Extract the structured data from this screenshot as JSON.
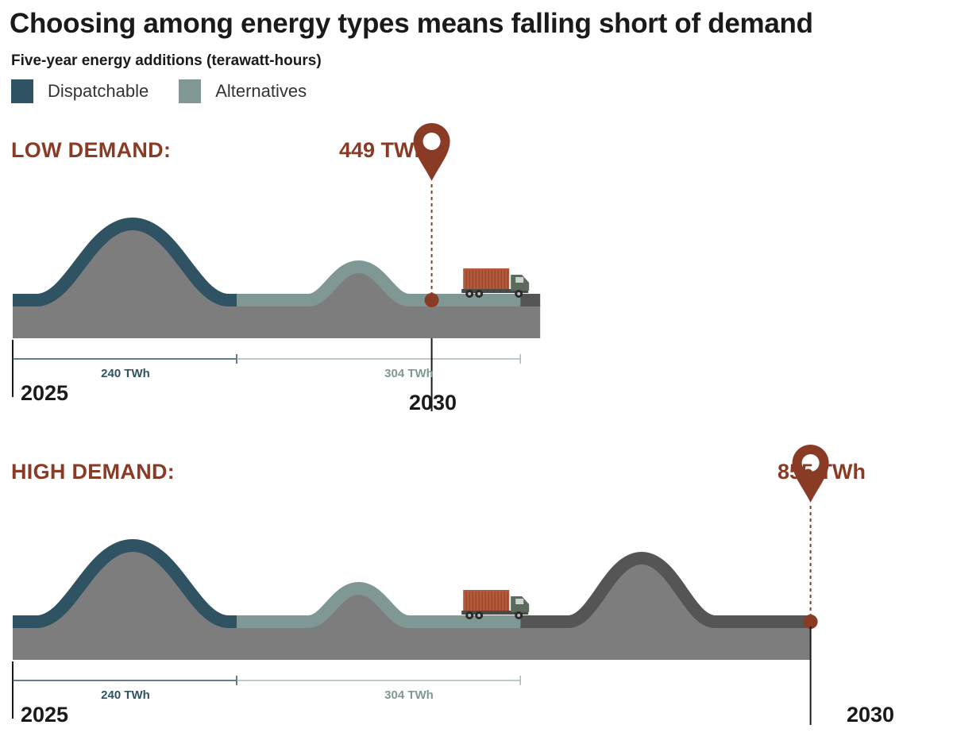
{
  "title": "Choosing among energy types means falling short of demand",
  "subtitle": "Five-year energy additions (terawatt-hours)",
  "legend": [
    {
      "label": "Dispatchable",
      "color": "#2f5362"
    },
    {
      "label": "Alternatives",
      "color": "#7f9894"
    }
  ],
  "colors": {
    "dispatchable": "#2f5362",
    "alternatives": "#7f9894",
    "shortfall": "#555555",
    "road": "#7d7d7d",
    "accent": "#8a3b26"
  },
  "chart_data": [
    {
      "type": "bar",
      "scenario": "LOW DEMAND:",
      "demand_total": "449 TWh",
      "demand_value": 449,
      "start_year": "2025",
      "end_year": "2030",
      "segments": [
        {
          "name": "Dispatchable",
          "value": 240,
          "label": "240 TWh"
        },
        {
          "name": "Alternatives",
          "value": 304,
          "label": "304 TWh"
        }
      ]
    },
    {
      "type": "bar",
      "scenario": "HIGH DEMAND:",
      "demand_total": "855 TWh",
      "demand_value": 855,
      "start_year": "2025",
      "end_year": "2030",
      "segments": [
        {
          "name": "Dispatchable",
          "value": 240,
          "label": "240 TWh"
        },
        {
          "name": "Alternatives",
          "value": 304,
          "label": "304 TWh"
        }
      ]
    }
  ]
}
